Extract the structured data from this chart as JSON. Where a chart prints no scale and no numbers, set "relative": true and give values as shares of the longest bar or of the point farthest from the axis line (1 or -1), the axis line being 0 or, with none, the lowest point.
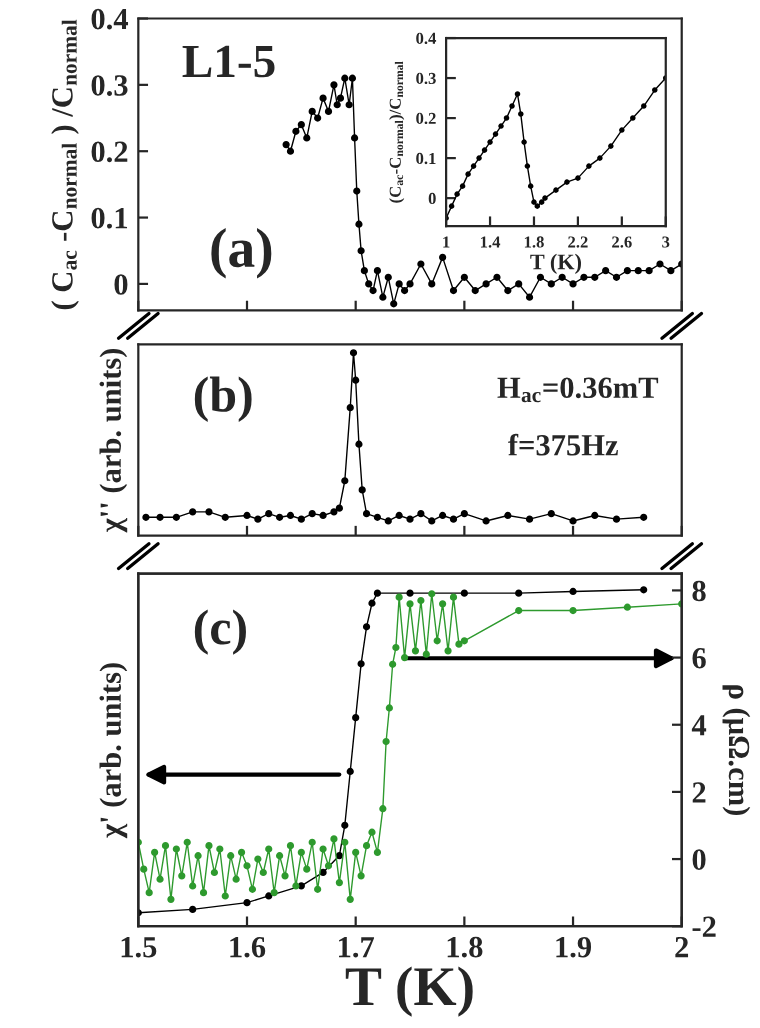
{
  "chart_data": [
    {
      "type": "line",
      "ylabel": "( C$_{ac}$ -C$_{normal}$ ) /C$_{normal}$",
      "annotations": [
        "L1-5",
        "(a)"
      ],
      "xlim": [
        1.5,
        2
      ],
      "xticks": [
        1.5,
        1.6,
        1.7,
        1.8,
        1.9,
        2
      ],
      "ylim": [
        -0.04,
        0.4
      ],
      "yticks": [
        0,
        0.1,
        0.2,
        0.3,
        0.4
      ],
      "tick_labels": "y",
      "marker": "circle",
      "grid": false,
      "legend": false,
      "series": [
        {
          "color": "#000000",
          "x": [
            1.636,
            1.64,
            1.645,
            1.65,
            1.655,
            1.66,
            1.665,
            1.67,
            1.675,
            1.68,
            1.683,
            1.686,
            1.69,
            1.694,
            1.697,
            1.699,
            1.701,
            1.703,
            1.705,
            1.708,
            1.712,
            1.716,
            1.72,
            1.725,
            1.73,
            1.735,
            1.74,
            1.745,
            1.75,
            1.76,
            1.77,
            1.78,
            1.79,
            1.8,
            1.81,
            1.82,
            1.83,
            1.84,
            1.85,
            1.86,
            1.87,
            1.88,
            1.89,
            1.9,
            1.91,
            1.92,
            1.93,
            1.94,
            1.95,
            1.96,
            1.97,
            1.98,
            1.99,
            2.0
          ],
          "values": [
            0.21,
            0.2,
            0.23,
            0.24,
            0.22,
            0.26,
            0.25,
            0.28,
            0.26,
            0.3,
            0.27,
            0.28,
            0.31,
            0.27,
            0.31,
            0.22,
            0.14,
            0.09,
            0.05,
            0.02,
            0.0,
            -0.01,
            0.02,
            -0.02,
            0.01,
            -0.03,
            0.0,
            -0.01,
            0.0,
            0.03,
            0.0,
            0.04,
            -0.01,
            0.01,
            -0.01,
            0.0,
            0.01,
            -0.01,
            0.0,
            -0.02,
            0.01,
            0.0,
            0.01,
            0.0,
            0.01,
            0.01,
            0.02,
            0.01,
            0.02,
            0.02,
            0.02,
            0.03,
            0.02,
            0.03
          ]
        }
      ]
    },
    {
      "type": "line",
      "xlabel": "T (K)",
      "ylabel": "(C$_{ac}$-C$_{normal}$)/C$_{normal}$",
      "xlim": [
        1,
        3
      ],
      "xticks": [
        1,
        1.4,
        1.8,
        2.2,
        2.6,
        3
      ],
      "ylim": [
        -0.07,
        0.4
      ],
      "yticks": [
        0,
        0.1,
        0.2,
        0.3,
        0.4
      ],
      "marker": "circle",
      "grid": false,
      "legend": false,
      "series": [
        {
          "color": "#000000",
          "x": [
            1.0,
            1.05,
            1.1,
            1.15,
            1.2,
            1.25,
            1.3,
            1.35,
            1.4,
            1.45,
            1.5,
            1.55,
            1.6,
            1.65,
            1.68,
            1.71,
            1.74,
            1.77,
            1.8,
            1.83,
            1.87,
            1.9,
            2.0,
            2.1,
            2.2,
            2.3,
            2.4,
            2.5,
            2.6,
            2.7,
            2.8,
            2.9,
            3.0
          ],
          "values": [
            -0.05,
            -0.02,
            0.01,
            0.03,
            0.06,
            0.08,
            0.1,
            0.12,
            0.14,
            0.16,
            0.18,
            0.2,
            0.23,
            0.26,
            0.21,
            0.14,
            0.08,
            0.03,
            -0.01,
            -0.02,
            -0.01,
            0.0,
            0.02,
            0.04,
            0.05,
            0.08,
            0.1,
            0.13,
            0.17,
            0.2,
            0.23,
            0.27,
            0.3
          ]
        }
      ]
    },
    {
      "type": "line",
      "ylabel": "χ'' (arb. units)",
      "annotations": [
        "(b)",
        "H$_{ac}$=0.36mT",
        "f=375Hz"
      ],
      "xlim": [
        1.5,
        2
      ],
      "xticks": [
        1.5,
        1.6,
        1.7,
        1.8,
        1.9,
        2
      ],
      "relative": true,
      "tick_labels": false,
      "marker": "circle",
      "grid": false,
      "legend": false,
      "series": [
        {
          "color": "#000000",
          "x": [
            1.507,
            1.52,
            1.535,
            1.55,
            1.565,
            1.58,
            1.6,
            1.61,
            1.62,
            1.63,
            1.64,
            1.65,
            1.66,
            1.67,
            1.68,
            1.685,
            1.69,
            1.695,
            1.698,
            1.7,
            1.703,
            1.706,
            1.71,
            1.72,
            1.73,
            1.74,
            1.75,
            1.76,
            1.77,
            1.78,
            1.79,
            1.8,
            1.82,
            1.84,
            1.86,
            1.88,
            1.9,
            1.92,
            1.94,
            1.965
          ],
          "values": [
            0.1,
            0.1,
            0.1,
            0.13,
            0.13,
            0.1,
            0.11,
            0.09,
            0.12,
            0.1,
            0.11,
            0.09,
            0.12,
            0.11,
            0.13,
            0.15,
            0.3,
            0.7,
            1.0,
            0.85,
            0.5,
            0.25,
            0.12,
            0.1,
            0.08,
            0.11,
            0.09,
            0.12,
            0.08,
            0.11,
            0.09,
            0.12,
            0.08,
            0.11,
            0.09,
            0.12,
            0.08,
            0.11,
            0.09,
            0.1
          ]
        }
      ]
    },
    {
      "type": "line",
      "xlabel": "T (K)",
      "ylabel": "χ' (arb. units)",
      "annotations": [
        "(c)"
      ],
      "xlim": [
        1.5,
        2
      ],
      "xticks": [
        1.5,
        1.6,
        1.7,
        1.8,
        1.9,
        2
      ],
      "relative": true,
      "tick_labels": "x",
      "marker": "circle",
      "grid": false,
      "legend": false,
      "series": [
        {
          "color": "#000000",
          "x": [
            1.5,
            1.55,
            1.6,
            1.62,
            1.65,
            1.67,
            1.685,
            1.69,
            1.695,
            1.7,
            1.705,
            1.71,
            1.715,
            1.72,
            1.75,
            1.8,
            1.85,
            1.9,
            1.965
          ],
          "values": [
            0.04,
            0.05,
            0.07,
            0.09,
            0.12,
            0.16,
            0.21,
            0.3,
            0.46,
            0.62,
            0.78,
            0.89,
            0.96,
            0.99,
            0.99,
            0.99,
            0.99,
            0.995,
            1.0
          ]
        }
      ]
    },
    {
      "type": "line",
      "ylabel": "ρ (μΩ.cm)",
      "xlim": [
        1.5,
        2
      ],
      "xticks": [
        1.5,
        1.6,
        1.7,
        1.8,
        1.9,
        2
      ],
      "ylim": [
        -2,
        8.5
      ],
      "yticks": [
        -2,
        0,
        2,
        4,
        6,
        8
      ],
      "tick_labels": "y",
      "marker": "circle",
      "grid": false,
      "legend": false,
      "series": [
        {
          "color": "#2e9a2e",
          "x": [
            1.5,
            1.505,
            1.51,
            1.515,
            1.52,
            1.525,
            1.53,
            1.535,
            1.54,
            1.545,
            1.55,
            1.555,
            1.56,
            1.565,
            1.57,
            1.575,
            1.58,
            1.585,
            1.59,
            1.595,
            1.6,
            1.605,
            1.61,
            1.615,
            1.62,
            1.625,
            1.63,
            1.635,
            1.64,
            1.645,
            1.65,
            1.655,
            1.66,
            1.665,
            1.67,
            1.675,
            1.68,
            1.685,
            1.69,
            1.695,
            1.7,
            1.705,
            1.71,
            1.715,
            1.72,
            1.725,
            1.728,
            1.731,
            1.734,
            1.737,
            1.74,
            1.745,
            1.75,
            1.755,
            1.76,
            1.765,
            1.77,
            1.775,
            1.78,
            1.785,
            1.79,
            1.795,
            1.8,
            1.85,
            1.9,
            1.95,
            2.0
          ],
          "values": [
            0.5,
            -0.3,
            -1.0,
            0.2,
            -0.6,
            0.4,
            -1.2,
            0.3,
            -0.5,
            0.5,
            -0.8,
            0.1,
            -1.0,
            0.4,
            -0.4,
            0.3,
            -1.1,
            0.1,
            -0.6,
            0.2,
            -0.2,
            -0.9,
            0.0,
            -0.4,
            0.3,
            -1.0,
            0.1,
            -0.5,
            0.4,
            -0.8,
            0.2,
            -0.3,
            0.5,
            -0.9,
            0.3,
            -0.2,
            0.6,
            -0.7,
            0.5,
            -1.2,
            0.2,
            -0.5,
            0.4,
            0.8,
            0.2,
            1.5,
            3.5,
            4.5,
            5.8,
            6.3,
            7.8,
            6.0,
            7.6,
            6.2,
            7.7,
            6.1,
            7.9,
            6.5,
            7.6,
            6.2,
            7.8,
            6.4,
            6.5,
            7.4,
            7.4,
            7.5,
            7.6
          ]
        }
      ]
    }
  ]
}
